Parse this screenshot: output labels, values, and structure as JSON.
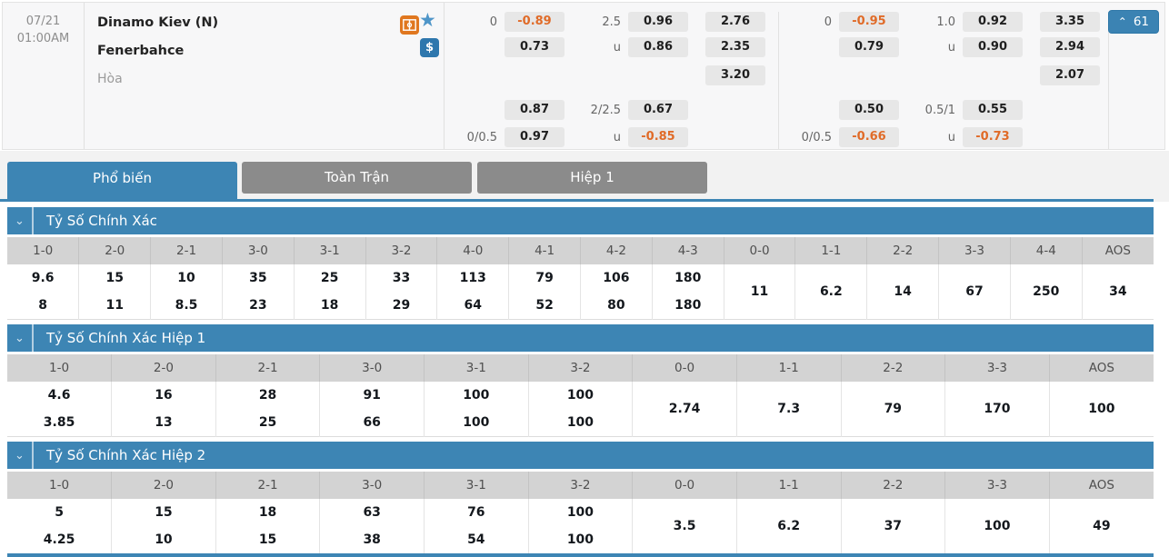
{
  "match": {
    "date": "07/21",
    "time": "01:00AM",
    "home_team": "Dinamo Kiev (N)",
    "away_team": "Fenerbahce",
    "draw_label": "Hòa",
    "live_count": "61"
  },
  "icons": {
    "star": "★",
    "dollar": "$",
    "chevron_up": "⌃",
    "chevron_down": "⌄"
  },
  "odds_panels": [
    {
      "rows": [
        {
          "l1": "0",
          "b1": "-0.89",
          "l2": "2.5",
          "b2": "0.96",
          "b3": "2.76"
        },
        {
          "b1": "0.73",
          "l2": "u",
          "b2": "0.86",
          "b3": "2.35"
        },
        {
          "b3": "3.20"
        },
        {
          "b1": "0.87",
          "l2": "2/2.5",
          "b2": "0.67"
        },
        {
          "l1": "0/0.5",
          "b1": "0.97",
          "l2": "u",
          "b2": "-0.85"
        }
      ]
    },
    {
      "rows": [
        {
          "l1": "0",
          "b1": "-0.95",
          "l2": "1.0",
          "b2": "0.92",
          "b3": "3.35"
        },
        {
          "b1": "0.79",
          "l2": "u",
          "b2": "0.90",
          "b3": "2.94"
        },
        {
          "b3": "2.07"
        },
        {
          "b1": "0.50",
          "l2": "0.5/1",
          "b2": "0.55"
        },
        {
          "l1": "0/0.5",
          "b1": "-0.66",
          "l2": "u",
          "b2": "-0.73"
        }
      ]
    }
  ],
  "tabs": [
    {
      "label": "Phổ biến",
      "active": true
    },
    {
      "label": "Toàn Trận",
      "active": false
    },
    {
      "label": "Hiệp 1",
      "active": false
    }
  ],
  "score_tables": [
    {
      "title": "Tỷ Số Chính Xác",
      "columns": [
        {
          "score": "1-0",
          "home": "9.6",
          "away": "8"
        },
        {
          "score": "2-0",
          "home": "15",
          "away": "11"
        },
        {
          "score": "2-1",
          "home": "10",
          "away": "8.5"
        },
        {
          "score": "3-0",
          "home": "35",
          "away": "23"
        },
        {
          "score": "3-1",
          "home": "25",
          "away": "18"
        },
        {
          "score": "3-2",
          "home": "33",
          "away": "29"
        },
        {
          "score": "4-0",
          "home": "113",
          "away": "64"
        },
        {
          "score": "4-1",
          "home": "79",
          "away": "52"
        },
        {
          "score": "4-2",
          "home": "106",
          "away": "80"
        },
        {
          "score": "4-3",
          "home": "180",
          "away": "180"
        },
        {
          "score": "0-0",
          "draw": "11"
        },
        {
          "score": "1-1",
          "draw": "6.2"
        },
        {
          "score": "2-2",
          "draw": "14"
        },
        {
          "score": "3-3",
          "draw": "67"
        },
        {
          "score": "4-4",
          "draw": "250"
        },
        {
          "score": "AOS",
          "draw": "34"
        }
      ]
    },
    {
      "title": "Tỷ Số Chính Xác Hiệp 1",
      "columns": [
        {
          "score": "1-0",
          "home": "4.6",
          "away": "3.85"
        },
        {
          "score": "2-0",
          "home": "16",
          "away": "13"
        },
        {
          "score": "2-1",
          "home": "28",
          "away": "25"
        },
        {
          "score": "3-0",
          "home": "91",
          "away": "66"
        },
        {
          "score": "3-1",
          "home": "100",
          "away": "100"
        },
        {
          "score": "3-2",
          "home": "100",
          "away": "100"
        },
        {
          "score": "0-0",
          "draw": "2.74"
        },
        {
          "score": "1-1",
          "draw": "7.3"
        },
        {
          "score": "2-2",
          "draw": "79"
        },
        {
          "score": "3-3",
          "draw": "170"
        },
        {
          "score": "AOS",
          "draw": "100"
        }
      ]
    },
    {
      "title": "Tỷ Số Chính Xác Hiệp 2",
      "columns": [
        {
          "score": "1-0",
          "home": "5",
          "away": "4.25"
        },
        {
          "score": "2-0",
          "home": "15",
          "away": "10"
        },
        {
          "score": "2-1",
          "home": "18",
          "away": "15"
        },
        {
          "score": "3-0",
          "home": "63",
          "away": "38"
        },
        {
          "score": "3-1",
          "home": "76",
          "away": "54"
        },
        {
          "score": "3-2",
          "home": "100",
          "away": "100"
        },
        {
          "score": "0-0",
          "draw": "3.5"
        },
        {
          "score": "1-1",
          "draw": "6.2"
        },
        {
          "score": "2-2",
          "draw": "37"
        },
        {
          "score": "3-3",
          "draw": "100"
        },
        {
          "score": "AOS",
          "draw": "49"
        }
      ]
    }
  ],
  "colors": {
    "accent_blue": "#3d85b4",
    "tab_gray": "#8b8b8b",
    "negative_orange": "#e06b28",
    "odds_box_gray": "#e7e7e7"
  }
}
